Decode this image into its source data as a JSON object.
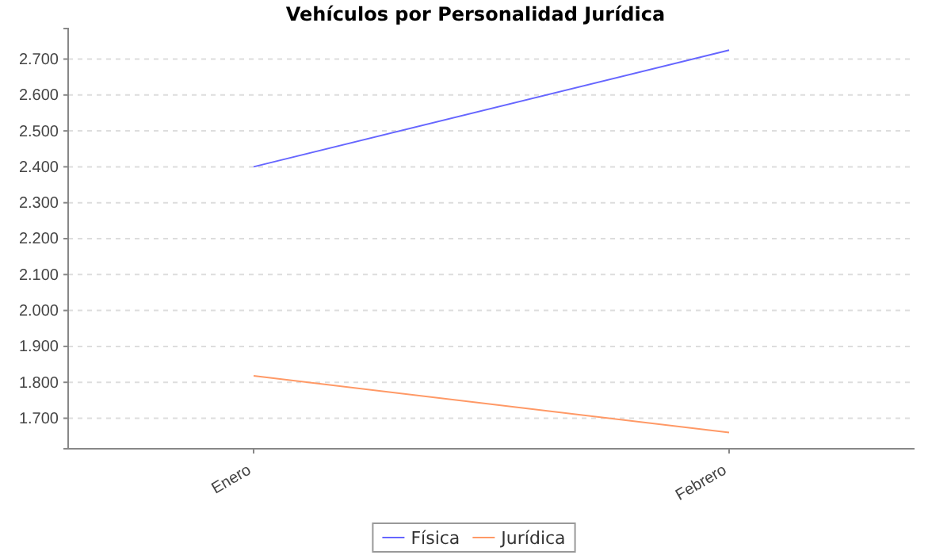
{
  "chart_data": {
    "type": "line",
    "title": "Vehículos por Personalidad Jurídica",
    "categories": [
      "Enero",
      "Febrero"
    ],
    "series": [
      {
        "name": "Física",
        "color": "#6666ff",
        "values": [
          2400,
          2725
        ]
      },
      {
        "name": "Jurídica",
        "color": "#ff9966",
        "values": [
          1818,
          1660
        ]
      }
    ],
    "ylim": [
      1615,
      2785
    ],
    "yticks": [
      {
        "value": 1700,
        "label": "1.700"
      },
      {
        "value": 1800,
        "label": "1.800"
      },
      {
        "value": 1900,
        "label": "1.900"
      },
      {
        "value": 2000,
        "label": "2.000"
      },
      {
        "value": 2100,
        "label": "2.100"
      },
      {
        "value": 2200,
        "label": "2.200"
      },
      {
        "value": 2300,
        "label": "2.300"
      },
      {
        "value": 2400,
        "label": "2.400"
      },
      {
        "value": 2500,
        "label": "2.500"
      },
      {
        "value": 2600,
        "label": "2.600"
      },
      {
        "value": 2700,
        "label": "2.700"
      }
    ],
    "grid": "y",
    "legend": "bottom",
    "marker": "none",
    "line_style": "solid"
  }
}
